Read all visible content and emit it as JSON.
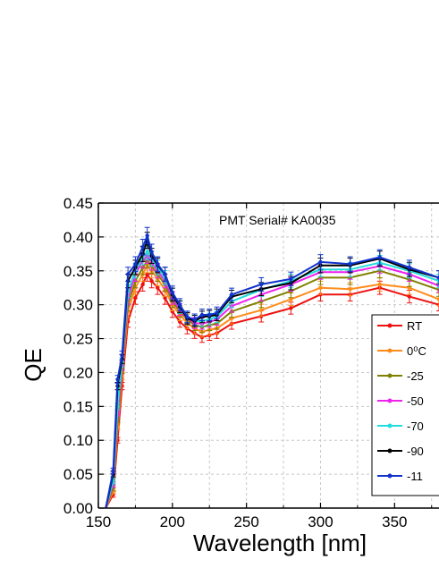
{
  "chart_data": {
    "type": "line",
    "title": "",
    "annotation": "PMT Serial# KA0035",
    "xlabel": "Wavelength [nm]",
    "ylabel": "QE",
    "xlim": [
      150,
      380
    ],
    "ylim": [
      0.0,
      0.45
    ],
    "xticks": [
      150,
      200,
      250,
      300,
      350
    ],
    "xtick_labels": [
      "150",
      "200",
      "250",
      "300",
      "350"
    ],
    "yticks": [
      0.0,
      0.05,
      0.1,
      0.15,
      0.2,
      0.25,
      0.3,
      0.35,
      0.4,
      0.45
    ],
    "ytick_labels": [
      "0.00",
      "0.05",
      "0.10",
      "0.15",
      "0.20",
      "0.25",
      "0.30",
      "0.35",
      "0.40",
      "0.45"
    ],
    "grid": true,
    "legend_position": "right",
    "x": [
      155,
      160,
      163,
      166,
      170,
      175,
      180,
      183,
      186,
      190,
      195,
      200,
      205,
      210,
      215,
      220,
      225,
      230,
      240,
      260,
      280,
      300,
      320,
      340,
      360,
      380
    ],
    "series": [
      {
        "name": "RT",
        "color": "#ee1111",
        "values": [
          0.0,
          0.02,
          0.1,
          0.18,
          0.275,
          0.31,
          0.33,
          0.345,
          0.335,
          0.325,
          0.31,
          0.29,
          0.275,
          0.265,
          0.258,
          0.252,
          0.255,
          0.258,
          0.272,
          0.283,
          0.295,
          0.315,
          0.315,
          0.325,
          0.312,
          0.3
        ]
      },
      {
        "name": "0⁰C",
        "color": "#ff8c1a",
        "values": [
          0.0,
          0.025,
          0.12,
          0.195,
          0.29,
          0.325,
          0.345,
          0.358,
          0.35,
          0.338,
          0.322,
          0.3,
          0.285,
          0.273,
          0.265,
          0.26,
          0.263,
          0.265,
          0.28,
          0.292,
          0.308,
          0.325,
          0.323,
          0.33,
          0.325,
          0.308
        ]
      },
      {
        "name": "-25",
        "color": "#808000",
        "values": [
          0.0,
          0.03,
          0.13,
          0.205,
          0.3,
          0.335,
          0.355,
          0.365,
          0.357,
          0.345,
          0.33,
          0.305,
          0.29,
          0.278,
          0.27,
          0.267,
          0.27,
          0.272,
          0.29,
          0.305,
          0.32,
          0.34,
          0.34,
          0.35,
          0.337,
          0.322
        ]
      },
      {
        "name": "-50",
        "color": "#ee22ee",
        "values": [
          0.0,
          0.035,
          0.14,
          0.21,
          0.31,
          0.345,
          0.365,
          0.372,
          0.362,
          0.35,
          0.335,
          0.31,
          0.293,
          0.28,
          0.273,
          0.272,
          0.275,
          0.278,
          0.298,
          0.315,
          0.33,
          0.348,
          0.348,
          0.357,
          0.345,
          0.328
        ]
      },
      {
        "name": "-70",
        "color": "#22dddd",
        "values": [
          0.0,
          0.04,
          0.15,
          0.215,
          0.32,
          0.35,
          0.37,
          0.378,
          0.368,
          0.355,
          0.34,
          0.315,
          0.296,
          0.282,
          0.276,
          0.276,
          0.279,
          0.282,
          0.305,
          0.322,
          0.335,
          0.352,
          0.352,
          0.362,
          0.35,
          0.335
        ]
      },
      {
        "name": "-90",
        "color": "#000000",
        "values": [
          0.0,
          0.05,
          0.18,
          0.22,
          0.335,
          0.355,
          0.375,
          0.395,
          0.372,
          0.358,
          0.345,
          0.315,
          0.297,
          0.28,
          0.276,
          0.282,
          0.283,
          0.285,
          0.312,
          0.323,
          0.332,
          0.358,
          0.358,
          0.368,
          0.352,
          0.34
        ]
      },
      {
        "name": "-11",
        "color": "#1133cc",
        "values": [
          0.0,
          0.055,
          0.19,
          0.225,
          0.345,
          0.36,
          0.385,
          0.402,
          0.378,
          0.36,
          0.345,
          0.318,
          0.3,
          0.282,
          0.278,
          0.285,
          0.285,
          0.288,
          0.315,
          0.33,
          0.338,
          0.363,
          0.36,
          0.37,
          0.355,
          0.34
        ]
      }
    ]
  }
}
